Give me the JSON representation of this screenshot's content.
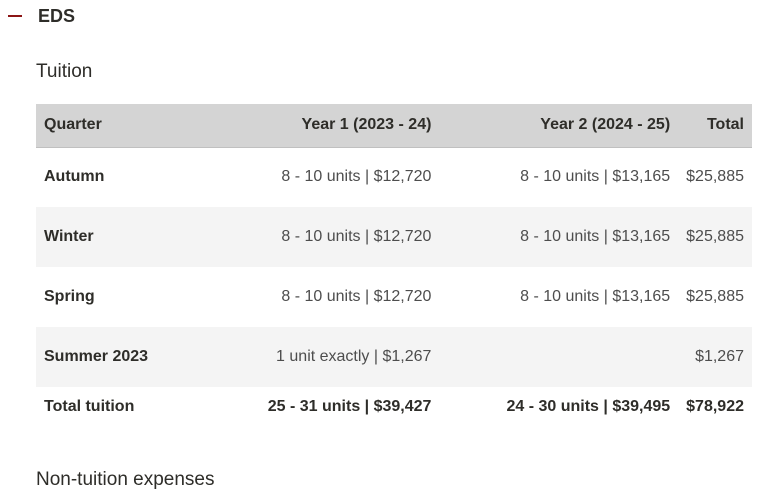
{
  "accordion": {
    "title": "EDS",
    "icon": "minus-icon",
    "accent_color": "#8c1515"
  },
  "tuition": {
    "title": "Tuition",
    "headers": {
      "quarter": "Quarter",
      "year1": "Year 1 (2023 - 24)",
      "year2": "Year 2 (2024 - 25)",
      "total": "Total"
    },
    "rows": [
      {
        "quarter": "Autumn",
        "year1": "8 - 10 units | $12,720",
        "year2": "8 - 10 units | $13,165",
        "total": "$25,885"
      },
      {
        "quarter": "Winter",
        "year1": "8 - 10 units | $12,720",
        "year2": "8 - 10 units | $13,165",
        "total": "$25,885"
      },
      {
        "quarter": "Spring",
        "year1": "8 - 10 units | $12,720",
        "year2": "8 - 10 units | $13,165",
        "total": "$25,885"
      },
      {
        "quarter": "Summer 2023",
        "year1": "1 unit exactly | $1,267",
        "year2": "",
        "total": "$1,267"
      }
    ],
    "total_row": {
      "quarter": "Total tuition",
      "year1": "25 - 31 units | $39,427",
      "year2": "24 - 30 units | $39,495",
      "total": "$78,922"
    }
  },
  "non_tuition": {
    "title": "Non-tuition expenses"
  }
}
